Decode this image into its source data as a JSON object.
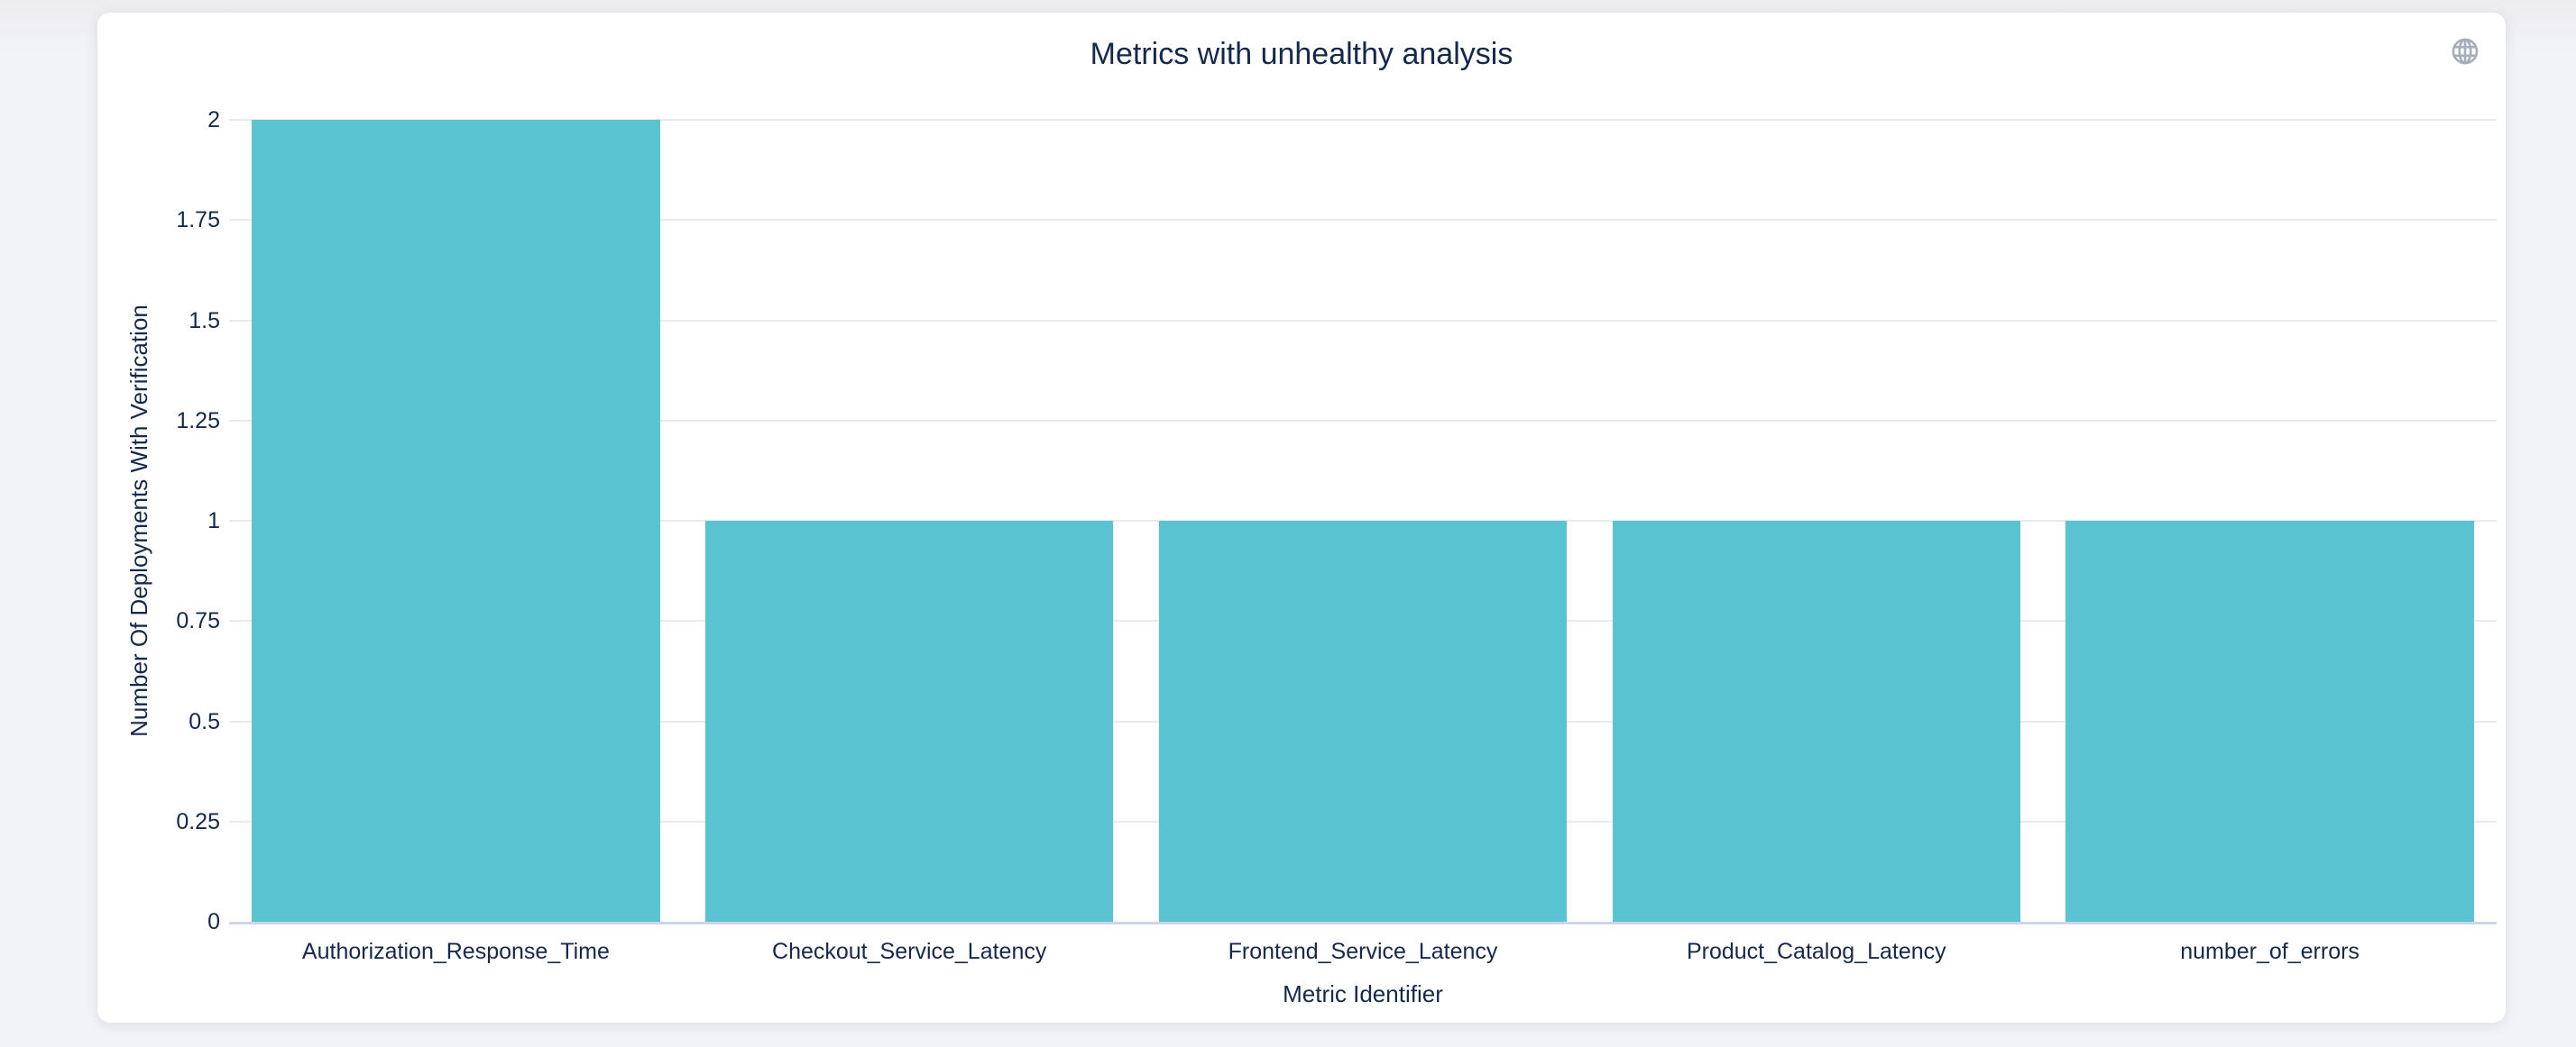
{
  "page": {
    "background_color": "#f1f2f6"
  },
  "card": {
    "background_color": "#ffffff",
    "icon": "globe-icon"
  },
  "chart_data": {
    "type": "bar",
    "title": "Metrics with unhealthy analysis",
    "xlabel": "Metric Identifier",
    "ylabel": "Number Of Deployments With Verification",
    "categories": [
      "Authorization_Response_Time",
      "Checkout_Service_Latency",
      "Frontend_Service_Latency",
      "Product_Catalog_Latency",
      "number_of_errors"
    ],
    "values": [
      2,
      1,
      1,
      1,
      1
    ],
    "ylim": [
      0,
      2
    ],
    "yticks": [
      0,
      0.25,
      0.5,
      0.75,
      1,
      1.25,
      1.5,
      1.75,
      2
    ],
    "ytick_labels": [
      "0",
      "0.25",
      "0.5",
      "0.75",
      "1",
      "1.25",
      "1.5",
      "1.75",
      "2"
    ],
    "grid": true,
    "legend_position": "none",
    "bar_color": "#5ac3d1",
    "grid_color": "#e9eaec",
    "zero_line_color": "#ccd4e6",
    "text_color": "#15294b",
    "icon_color": "#a7aeba"
  }
}
